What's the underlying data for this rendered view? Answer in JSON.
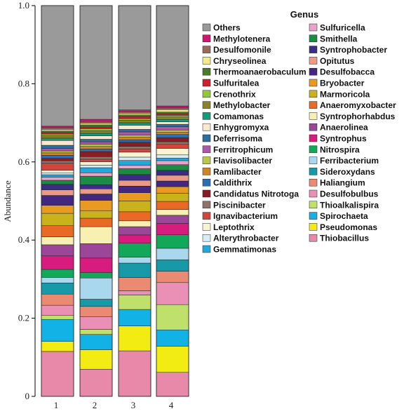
{
  "chart_data": {
    "type": "bar",
    "stacked": true,
    "ylabel": "Abundance",
    "xlabel": "",
    "ylim": [
      0,
      1.0
    ],
    "yticks": [
      "0",
      "0.2",
      "0.4",
      "0.6",
      "0.8",
      "1.0"
    ],
    "categories": [
      "1",
      "2",
      "3",
      "4"
    ],
    "legend_title": "Genus",
    "legend_placement": "right",
    "series": [
      {
        "name": "Thiobacillus",
        "color": "#e889aa",
        "values": [
          0.113,
          0.064,
          0.11,
          0.059
        ]
      },
      {
        "name": "Pseudomonas",
        "color": "#f2ec12",
        "values": [
          0.025,
          0.046,
          0.06,
          0.064
        ]
      },
      {
        "name": "Spirochaeta",
        "color": "#13b2e6",
        "values": [
          0.055,
          0.036,
          0.04,
          0.04
        ]
      },
      {
        "name": "Thioalkalispira",
        "color": "#bfe06a",
        "values": [
          0.011,
          0.012,
          0.035,
          0.062
        ]
      },
      {
        "name": "Desulfobulbus",
        "color": "#ea8fb6",
        "values": [
          0.025,
          0.03,
          0.01,
          0.054
        ]
      },
      {
        "name": "Haliangium",
        "color": "#ea8a73",
        "values": [
          0.028,
          0.024,
          0.032,
          0.028
        ]
      },
      {
        "name": "Sideroxydans",
        "color": "#1899a7",
        "values": [
          0.028,
          0.017,
          0.035,
          0.028
        ]
      },
      {
        "name": "Ferribacterium",
        "color": "#a9d8ee",
        "values": [
          0.014,
          0.05,
          0.014,
          0.028
        ]
      },
      {
        "name": "Nitrospira",
        "color": "#12a85a",
        "values": [
          0.02,
          0.013,
          0.034,
          0.033
        ]
      },
      {
        "name": "Syntrophus",
        "color": "#d81b7f",
        "values": [
          0.034,
          0.034,
          0.02,
          0.028
        ]
      },
      {
        "name": "Anaerolinea",
        "color": "#9b4698",
        "values": [
          0.028,
          0.034,
          0.02,
          0.02
        ]
      },
      {
        "name": "Syntrophorhabdus",
        "color": "#f8f0b0",
        "values": [
          0.02,
          0.04,
          0.014,
          0.014
        ]
      },
      {
        "name": "Anaeromyxobacter",
        "color": "#e86a24",
        "values": [
          0.028,
          0.02,
          0.022,
          0.02
        ]
      },
      {
        "name": "Marmoricola",
        "color": "#c9b21c",
        "values": [
          0.031,
          0.017,
          0.026,
          0.02
        ]
      },
      {
        "name": "Bryobacter",
        "color": "#e99b21",
        "values": [
          0.02,
          0.025,
          0.02,
          0.016
        ]
      },
      {
        "name": "Desulfobacca",
        "color": "#44287f",
        "values": [
          0.025,
          0.015,
          0.016,
          0.014
        ]
      },
      {
        "name": "Opitutus",
        "color": "#ea9a86",
        "values": [
          0.014,
          0.012,
          0.014,
          0.014
        ]
      },
      {
        "name": "Syntrophobacter",
        "color": "#3b2d84",
        "values": [
          0.014,
          0.01,
          0.014,
          0.012
        ]
      },
      {
        "name": "Smithella",
        "color": "#1c8c45",
        "values": [
          0.01,
          0.02,
          0.014,
          0.014
        ]
      },
      {
        "name": "Sulfuricella",
        "color": "#e9a3c6",
        "values": [
          0.008,
          0.008,
          0.008,
          0.01
        ]
      },
      {
        "name": "Gemmatimonas",
        "color": "#20a9da",
        "values": [
          0.006,
          0.012,
          0.012,
          0.006
        ]
      },
      {
        "name": "Alterythrobacter",
        "color": "#d8ecf7",
        "values": [
          0.005,
          0.006,
          0.008,
          0.008
        ]
      },
      {
        "name": "Leptothrix",
        "color": "#f9f4d2",
        "values": [
          0.006,
          0.008,
          0.012,
          0.016
        ]
      },
      {
        "name": "Ignavibacterium",
        "color": "#d0463d",
        "values": [
          0.018,
          0.006,
          0.008,
          0.01
        ]
      },
      {
        "name": "Piscinibacter",
        "color": "#8e7565",
        "values": [
          0.006,
          0.006,
          0.006,
          0.006
        ]
      },
      {
        "name": "Candidatus Nitrotoga",
        "color": "#8b1c24",
        "values": [
          0.006,
          0.012,
          0.01,
          0.01
        ]
      },
      {
        "name": "Caldithrix",
        "color": "#2b6fb2",
        "values": [
          0.008,
          0.006,
          0.006,
          0.008
        ]
      },
      {
        "name": "Ramlibacter",
        "color": "#d0852a",
        "values": [
          0.006,
          0.006,
          0.006,
          0.006
        ]
      },
      {
        "name": "Flavisolibacter",
        "color": "#b9c84a",
        "values": [
          0.005,
          0.005,
          0.005,
          0.005
        ]
      },
      {
        "name": "Ferritrophicum",
        "color": "#aa5aa8",
        "values": [
          0.006,
          0.006,
          0.008,
          0.008
        ]
      },
      {
        "name": "Deferrisoma",
        "color": "#2a6f9e",
        "values": [
          0.008,
          0.006,
          0.006,
          0.006
        ]
      },
      {
        "name": "Enhygromyxa",
        "color": "#f9e7cf",
        "values": [
          0.012,
          0.008,
          0.01,
          0.006
        ]
      },
      {
        "name": "Comamonas",
        "color": "#139c7c",
        "values": [
          0.006,
          0.006,
          0.006,
          0.006
        ]
      },
      {
        "name": "Methylobacter",
        "color": "#8d8227",
        "values": [
          0.006,
          0.006,
          0.006,
          0.006
        ]
      },
      {
        "name": "Crenothrix",
        "color": "#92c83a",
        "values": [
          0.004,
          0.005,
          0.004,
          0.004
        ]
      },
      {
        "name": "Sulfuritalea",
        "color": "#d01f2e",
        "values": [
          0.004,
          0.004,
          0.005,
          0.004
        ]
      },
      {
        "name": "Thermoanaerobaculum",
        "color": "#4b7a2c",
        "values": [
          0.004,
          0.005,
          0.004,
          0.004
        ]
      },
      {
        "name": "Chryseolinea",
        "color": "#f4eb90",
        "values": [
          0.004,
          0.004,
          0.004,
          0.006
        ]
      },
      {
        "name": "Desulfomonile",
        "color": "#9a6b5b",
        "values": [
          0.004,
          0.004,
          0.004,
          0.004
        ]
      },
      {
        "name": "Methylotenera",
        "color": "#cf1670",
        "values": [
          0.004,
          0.005,
          0.004,
          0.005
        ]
      },
      {
        "name": "Others",
        "color": "#9a9a9a",
        "values": [
          0.303,
          0.268,
          0.252,
          0.246
        ]
      }
    ],
    "legend_columns": [
      [
        "Others",
        "Methylotenera",
        "Desulfomonile",
        "Chryseolinea",
        "Thermoanaerobaculum",
        "Sulfuritalea",
        "Crenothrix",
        "Methylobacter",
        "Comamonas",
        "Enhygromyxa",
        "Deferrisoma",
        "Ferritrophicum",
        "Flavisolibacter",
        "Ramlibacter",
        "Caldithrix",
        "Candidatus Nitrotoga",
        "Piscinibacter",
        "Ignavibacterium",
        "Leptothrix",
        "Alterythrobacter",
        "Gemmatimonas"
      ],
      [
        "Sulfuricella",
        "Smithella",
        "Syntrophobacter",
        "Opitutus",
        "Desulfobacca",
        "Bryobacter",
        "Marmoricola",
        "Anaeromyxobacter",
        "Syntrophorhabdus",
        "Anaerolinea",
        "Syntrophus",
        "Nitrospira",
        "Ferribacterium",
        "Sideroxydans",
        "Haliangium",
        "Desulfobulbus",
        "Thioalkalispira",
        "Spirochaeta",
        "Pseudomonas",
        "Thiobacillus"
      ]
    ]
  }
}
